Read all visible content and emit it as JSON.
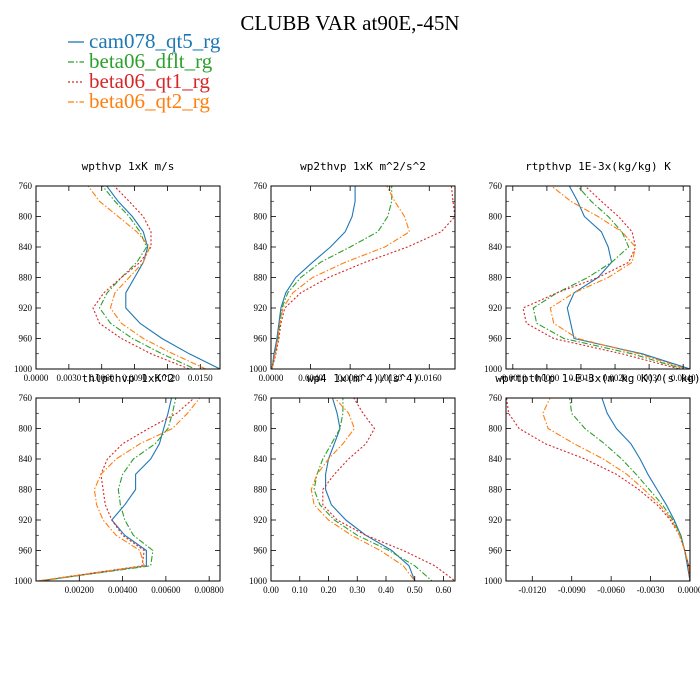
{
  "figure": {
    "title": "CLUBB VAR at90E,-45N",
    "legend": [
      {
        "label": "cam078_qt5_rg",
        "color": "#1f77b4",
        "dash": "solid"
      },
      {
        "label": "beta06_dflt_rg",
        "color": "#2ca02c",
        "dash": "dashdot"
      },
      {
        "label": "beta06_qt1_rg",
        "color": "#d62728",
        "dash": "dotted"
      },
      {
        "label": "beta06_qt2_rg",
        "color": "#ff7f0e",
        "dash": "dashdot"
      }
    ]
  },
  "chart_data": [
    {
      "type": "line",
      "title": "wpthvp  1xK m/s",
      "xlim": [
        0.0,
        0.0168
      ],
      "ylim": [
        760,
        1000
      ],
      "y_reversed": true,
      "xticks": [
        "0.0000",
        "0.0030",
        "0.0060",
        "0.0090",
        "0.0120",
        "0.0150"
      ],
      "xtick_values": [
        0.0,
        0.003,
        0.006,
        0.009,
        0.012,
        0.015
      ],
      "yticks": [
        760,
        800,
        840,
        880,
        920,
        960,
        1000
      ],
      "y": [
        755,
        780,
        800,
        820,
        840,
        860,
        880,
        900,
        920,
        940,
        960,
        980,
        1000
      ],
      "series": [
        {
          "name": "cam078_qt5_rg",
          "x": [
            0.0062,
            0.0075,
            0.0088,
            0.0098,
            0.0102,
            0.0098,
            0.009,
            0.0082,
            0.0082,
            0.0095,
            0.0115,
            0.014,
            0.0168
          ]
        },
        {
          "name": "beta06_dflt_rg",
          "x": [
            0.0058,
            0.0072,
            0.0085,
            0.0095,
            0.0101,
            0.0092,
            0.0078,
            0.0065,
            0.0058,
            0.0068,
            0.0088,
            0.0115,
            0.0145
          ]
        },
        {
          "name": "beta06_qt1_rg",
          "x": [
            0.0068,
            0.0085,
            0.0098,
            0.0105,
            0.0105,
            0.0095,
            0.0078,
            0.0062,
            0.0052,
            0.0058,
            0.0078,
            0.0105,
            0.014
          ]
        },
        {
          "name": "beta06_qt2_rg",
          "x": [
            0.0045,
            0.0058,
            0.0075,
            0.0092,
            0.0104,
            0.0098,
            0.0085,
            0.0072,
            0.0068,
            0.0078,
            0.0098,
            0.0125,
            0.0155
          ]
        }
      ]
    },
    {
      "type": "line",
      "title": "wp2thvp  1xK m^2/s^2",
      "xlim": [
        0.0,
        0.0186
      ],
      "ylim": [
        760,
        1000
      ],
      "y_reversed": true,
      "xticks": [
        "0.0000",
        "0.0040",
        "0.0080",
        "0.0120",
        "0.0160"
      ],
      "xtick_values": [
        0.0,
        0.004,
        0.008,
        0.012,
        0.016
      ],
      "yticks": [
        760,
        800,
        840,
        880,
        920,
        960,
        1000
      ],
      "y": [
        755,
        780,
        800,
        820,
        840,
        860,
        880,
        900,
        920,
        940,
        960,
        980,
        1000
      ],
      "series": [
        {
          "name": "cam078_qt5_rg",
          "x": [
            0.0085,
            0.0085,
            0.0082,
            0.0075,
            0.006,
            0.0042,
            0.0025,
            0.0015,
            0.001,
            0.0008,
            0.0006,
            0.0003,
            0.0001
          ]
        },
        {
          "name": "beta06_dflt_rg",
          "x": [
            0.0122,
            0.0122,
            0.0118,
            0.0108,
            0.008,
            0.005,
            0.003,
            0.0017,
            0.0011,
            0.0009,
            0.0007,
            0.0004,
            0.0001
          ]
        },
        {
          "name": "beta06_qt1_rg",
          "x": [
            0.0182,
            0.0184,
            0.0186,
            0.0172,
            0.0138,
            0.0095,
            0.0058,
            0.003,
            0.0014,
            0.001,
            0.0008,
            0.0005,
            0.0001
          ]
        },
        {
          "name": "beta06_qt2_rg",
          "x": [
            0.0115,
            0.0125,
            0.0135,
            0.014,
            0.0115,
            0.0075,
            0.0042,
            0.0022,
            0.0012,
            0.0009,
            0.0007,
            0.0004,
            0.0001
          ]
        }
      ]
    },
    {
      "type": "line",
      "title": "rtpthvp  1E-3x(kg/kg) K",
      "xlim": [
        -0.0012,
        0.0042
      ],
      "ylim": [
        760,
        1000
      ],
      "y_reversed": true,
      "xticks": [
        "-0.0010",
        "0.0000",
        "0.0010",
        "0.0020",
        "0.0030",
        "0.0040"
      ],
      "xtick_values": [
        -0.001,
        0.0,
        0.001,
        0.002,
        0.003,
        0.004
      ],
      "yticks": [
        760,
        800,
        840,
        880,
        920,
        960,
        1000
      ],
      "y": [
        755,
        780,
        800,
        820,
        840,
        860,
        880,
        900,
        920,
        940,
        960,
        980,
        1000
      ],
      "series": [
        {
          "name": "cam078_qt5_rg",
          "x": [
            0.0006,
            0.0009,
            0.0011,
            0.0016,
            0.0018,
            0.0019,
            0.0015,
            0.0008,
            0.0006,
            0.0007,
            0.0008,
            0.0028,
            0.0042
          ]
        },
        {
          "name": "beta06_dflt_rg",
          "x": [
            0.0008,
            0.0013,
            0.0018,
            0.0022,
            0.0024,
            0.0019,
            0.0012,
            0.0003,
            -0.0004,
            -0.0003,
            0.0005,
            0.0025,
            0.004
          ]
        },
        {
          "name": "beta06_qt1_rg",
          "x": [
            0.001,
            0.0016,
            0.0021,
            0.0025,
            0.0026,
            0.0024,
            0.0015,
            0.0003,
            -0.0007,
            -0.0006,
            0.0002,
            0.0022,
            0.0039
          ]
        },
        {
          "name": "beta06_qt2_rg",
          "x": [
            0.0,
            0.0007,
            0.0015,
            0.0022,
            0.0026,
            0.0025,
            0.0018,
            0.0008,
            0.0001,
            0.0002,
            0.0009,
            0.0027,
            0.0041
          ]
        }
      ]
    },
    {
      "type": "line",
      "title": "thlpthvp  1xK^2",
      "xlim": [
        0.0,
        0.0085
      ],
      "ylim": [
        760,
        1000
      ],
      "y_reversed": true,
      "xticks": [
        "0.00200",
        "0.00400",
        "0.00600",
        "0.00800"
      ],
      "xtick_values": [
        0.002,
        0.004,
        0.006,
        0.008
      ],
      "yticks": [
        760,
        800,
        840,
        880,
        920,
        960,
        1000
      ],
      "y": [
        755,
        780,
        800,
        820,
        840,
        860,
        880,
        900,
        920,
        940,
        960,
        980,
        1000
      ],
      "series": [
        {
          "name": "cam078_qt5_rg",
          "x": [
            0.0063,
            0.0061,
            0.0059,
            0.0057,
            0.0053,
            0.0046,
            0.0046,
            0.0041,
            0.0035,
            0.0041,
            0.0051,
            0.0051,
            0.0002
          ]
        },
        {
          "name": "beta06_dflt_rg",
          "x": [
            0.0065,
            0.0063,
            0.0061,
            0.0055,
            0.0045,
            0.004,
            0.0038,
            0.0039,
            0.0041,
            0.0045,
            0.0054,
            0.0053,
            0.0001
          ]
        },
        {
          "name": "beta06_qt1_rg",
          "x": [
            0.0075,
            0.0065,
            0.0052,
            0.004,
            0.0033,
            0.003,
            0.0031,
            0.0032,
            0.0035,
            0.004,
            0.005,
            0.0049,
            0.0001
          ]
        },
        {
          "name": "beta06_qt2_rg",
          "x": [
            0.0077,
            0.007,
            0.0063,
            0.0048,
            0.0037,
            0.003,
            0.0027,
            0.0028,
            0.0031,
            0.0037,
            0.0048,
            0.005,
            0.0001
          ]
        }
      ]
    },
    {
      "type": "line",
      "title": "wp4  1x(m^4)/(s^4)",
      "xlim": [
        0.0,
        0.64
      ],
      "ylim": [
        760,
        1000
      ],
      "y_reversed": true,
      "xticks": [
        "0.00",
        "0.10",
        "0.20",
        "0.30",
        "0.40",
        "0.50",
        "0.60"
      ],
      "xtick_values": [
        0.0,
        0.1,
        0.2,
        0.3,
        0.4,
        0.5,
        0.6
      ],
      "yticks": [
        760,
        800,
        840,
        880,
        920,
        960,
        1000
      ],
      "y": [
        755,
        780,
        800,
        820,
        840,
        860,
        880,
        900,
        920,
        940,
        960,
        980,
        1000
      ],
      "series": [
        {
          "name": "cam078_qt5_rg",
          "x": [
            0.21,
            0.23,
            0.24,
            0.22,
            0.2,
            0.19,
            0.19,
            0.21,
            0.26,
            0.33,
            0.42,
            0.48,
            0.5
          ]
        },
        {
          "name": "beta06_dflt_rg",
          "x": [
            0.25,
            0.25,
            0.24,
            0.21,
            0.18,
            0.16,
            0.15,
            0.17,
            0.22,
            0.3,
            0.41,
            0.5,
            0.56
          ]
        },
        {
          "name": "beta06_qt1_rg",
          "x": [
            0.28,
            0.32,
            0.36,
            0.33,
            0.27,
            0.22,
            0.18,
            0.18,
            0.23,
            0.33,
            0.46,
            0.57,
            0.64
          ]
        },
        {
          "name": "beta06_qt2_rg",
          "x": [
            0.21,
            0.27,
            0.29,
            0.25,
            0.2,
            0.16,
            0.14,
            0.15,
            0.2,
            0.28,
            0.38,
            0.46,
            0.5
          ]
        }
      ]
    },
    {
      "type": "line",
      "title": "wprtpthlp  1-E-3x(m kg K)/(s kg)",
      "xlim": [
        -0.014,
        0.0
      ],
      "ylim": [
        760,
        1000
      ],
      "y_reversed": true,
      "xticks": [
        "-0.0120",
        "-0.0090",
        "-0.0060",
        "-0.0030",
        "0.0000"
      ],
      "xtick_values": [
        -0.012,
        -0.009,
        -0.006,
        -0.003,
        0.0
      ],
      "yticks": [
        760,
        800,
        840,
        880,
        920,
        960,
        1000
      ],
      "y": [
        755,
        780,
        800,
        820,
        840,
        860,
        880,
        900,
        920,
        940,
        960,
        980,
        1000
      ],
      "series": [
        {
          "name": "cam078_qt5_rg",
          "x": [
            -0.0068,
            -0.0063,
            -0.0056,
            -0.0045,
            -0.0038,
            -0.0032,
            -0.0025,
            -0.0018,
            -0.0012,
            -0.0007,
            -0.0004,
            -0.0002,
            0.0
          ]
        },
        {
          "name": "beta06_dflt_rg",
          "x": [
            -0.0092,
            -0.009,
            -0.008,
            -0.0065,
            -0.0052,
            -0.0041,
            -0.0031,
            -0.0021,
            -0.0013,
            -0.0007,
            -0.0004,
            -0.0001,
            0.0
          ]
        },
        {
          "name": "beta06_qt1_rg",
          "x": [
            -0.014,
            -0.0138,
            -0.013,
            -0.011,
            -0.008,
            -0.0056,
            -0.0039,
            -0.0025,
            -0.0015,
            -0.0008,
            -0.0004,
            -0.0001,
            0.0
          ]
        },
        {
          "name": "beta06_qt2_rg",
          "x": [
            -0.0105,
            -0.0112,
            -0.0108,
            -0.0088,
            -0.0066,
            -0.0048,
            -0.0035,
            -0.0023,
            -0.0014,
            -0.0008,
            -0.0004,
            -0.0001,
            0.0
          ]
        }
      ]
    }
  ]
}
